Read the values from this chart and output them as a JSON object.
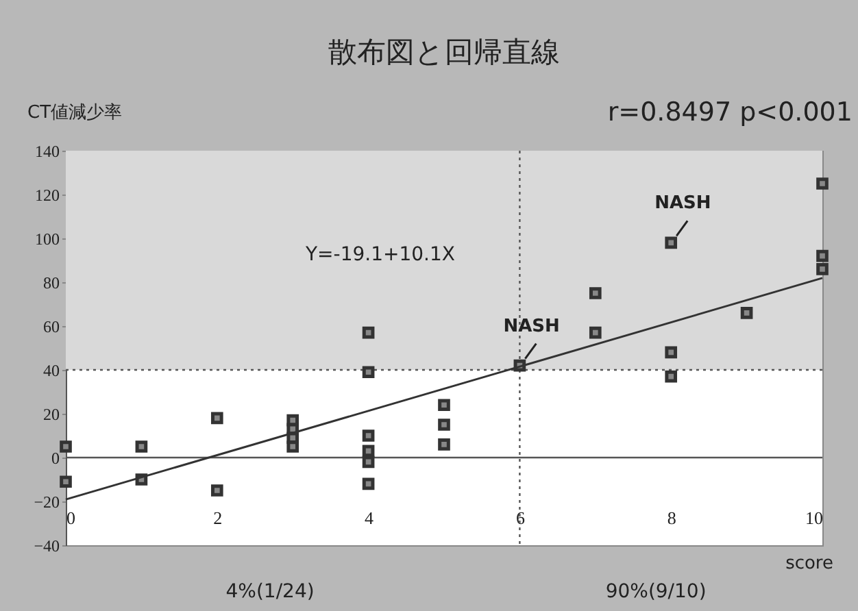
{
  "chart_data": {
    "type": "scatter",
    "title": "散布図と回帰直線",
    "xlabel": "score",
    "ylabel": "CT値減少率",
    "x": [
      0,
      0,
      1,
      1,
      2,
      2,
      3,
      3,
      3,
      3,
      4,
      4,
      4,
      4,
      4,
      4,
      5,
      5,
      5,
      6,
      7,
      7,
      8,
      8,
      8,
      9,
      10,
      10,
      10
    ],
    "series": [
      {
        "color": "#333333",
        "marker": "square",
        "values": [
          5,
          -11,
          5,
          -10,
          18,
          -15,
          17,
          13,
          9,
          5,
          57,
          39,
          10,
          3,
          -2,
          -12,
          24,
          15,
          6,
          42,
          75,
          57,
          98,
          48,
          37,
          66,
          125,
          92,
          86
        ]
      },
      {
        "type": "line",
        "color": "#333333",
        "line_style": "solid",
        "x": [
          0,
          10
        ],
        "values": [
          -19.1,
          81.9
        ]
      }
    ],
    "xlim": [
      0,
      10
    ],
    "xticks": [
      0,
      2,
      4,
      6,
      8,
      10
    ],
    "ylim": [
      -40,
      140
    ],
    "yticks": [
      -40,
      -20,
      0,
      20,
      40,
      60,
      80,
      100,
      120,
      140
    ],
    "grid": false,
    "bands": [
      {
        "axis": "y",
        "from": 40,
        "to": 140,
        "color": "#d9d9d9"
      }
    ],
    "ref_lines": [
      {
        "axis": "y",
        "value": 40,
        "line_style": "dotted",
        "color": "#555555"
      },
      {
        "axis": "x",
        "value": 6,
        "line_style": "dotted",
        "color": "#555555"
      },
      {
        "axis": "y",
        "value": 0,
        "line_style": "solid",
        "color": "#555555"
      }
    ],
    "annotations": [
      "Y=-19.1+10.1X",
      "r=0.8497  p<0.001",
      "4%(1/24)",
      "90%(9/10)",
      {
        "text": "NASH",
        "x": 6,
        "y": 42
      },
      {
        "text": "NASH",
        "x": 8,
        "y": 98
      }
    ]
  }
}
